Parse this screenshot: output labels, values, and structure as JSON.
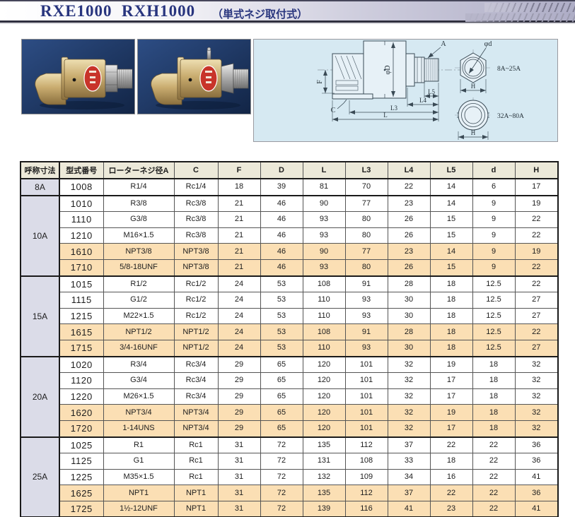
{
  "header": {
    "models": "RXE1000  RXH1000",
    "subtitle": "（単式ネジ取付式）"
  },
  "colors": {
    "title_navy": "#28357e",
    "band_gray": "#aeadc6",
    "diagram_bg": "#d6e9f2",
    "header_cream": "#ece9d9",
    "size_lavender": "#dbdce8",
    "npt_peach": "#fbdfb4",
    "photo_navy": "#1d3560",
    "brass": "#c8ab6e",
    "label_red": "#c8342a"
  },
  "photos": {
    "left_alt": "rotary-joint-photo-left",
    "right_alt": "rotary-joint-photo-right"
  },
  "diagram": {
    "labels": {
      "a": "A",
      "phi_d": "φd",
      "f": "F",
      "phi_D": "φD",
      "c": "C",
      "l5": "L5",
      "l4": "L4",
      "l3": "L3",
      "l": "L",
      "h_hex": "H",
      "h_round": "H",
      "range_hex": "8A~25A",
      "range_round": "32A~80A"
    }
  },
  "table": {
    "columns": [
      "呼称寸法",
      "型式番号",
      "ローターネジ径A",
      "C",
      "F",
      "D",
      "L",
      "L3",
      "L4",
      "L5",
      "d",
      "H"
    ],
    "groups": [
      {
        "size": "8A",
        "rows": [
          {
            "highlight": false,
            "cells": [
              "1008",
              "R1/4",
              "Rc1/4",
              "18",
              "39",
              "81",
              "70",
              "22",
              "14",
              "6",
              "17"
            ]
          }
        ]
      },
      {
        "size": "10A",
        "rows": [
          {
            "highlight": false,
            "cells": [
              "1010",
              "R3/8",
              "Rc3/8",
              "21",
              "46",
              "90",
              "77",
              "23",
              "14",
              "9",
              "19"
            ]
          },
          {
            "highlight": false,
            "cells": [
              "1110",
              "G3/8",
              "Rc3/8",
              "21",
              "46",
              "93",
              "80",
              "26",
              "15",
              "9",
              "22"
            ]
          },
          {
            "highlight": false,
            "cells": [
              "1210",
              "M16×1.5",
              "Rc3/8",
              "21",
              "46",
              "93",
              "80",
              "26",
              "15",
              "9",
              "22"
            ]
          },
          {
            "highlight": true,
            "cells": [
              "1610",
              "NPT3/8",
              "NPT3/8",
              "21",
              "46",
              "90",
              "77",
              "23",
              "14",
              "9",
              "19"
            ]
          },
          {
            "highlight": true,
            "cells": [
              "1710",
              "5/8-18UNF",
              "NPT3/8",
              "21",
              "46",
              "93",
              "80",
              "26",
              "15",
              "9",
              "22"
            ]
          }
        ]
      },
      {
        "size": "15A",
        "rows": [
          {
            "highlight": false,
            "cells": [
              "1015",
              "R1/2",
              "Rc1/2",
              "24",
              "53",
              "108",
              "91",
              "28",
              "18",
              "12.5",
              "22"
            ]
          },
          {
            "highlight": false,
            "cells": [
              "1115",
              "G1/2",
              "Rc1/2",
              "24",
              "53",
              "110",
              "93",
              "30",
              "18",
              "12.5",
              "27"
            ]
          },
          {
            "highlight": false,
            "cells": [
              "1215",
              "M22×1.5",
              "Rc1/2",
              "24",
              "53",
              "110",
              "93",
              "30",
              "18",
              "12.5",
              "27"
            ]
          },
          {
            "highlight": true,
            "cells": [
              "1615",
              "NPT1/2",
              "NPT1/2",
              "24",
              "53",
              "108",
              "91",
              "28",
              "18",
              "12.5",
              "22"
            ]
          },
          {
            "highlight": true,
            "cells": [
              "1715",
              "3/4-16UNF",
              "NPT1/2",
              "24",
              "53",
              "110",
              "93",
              "30",
              "18",
              "12.5",
              "27"
            ]
          }
        ]
      },
      {
        "size": "20A",
        "rows": [
          {
            "highlight": false,
            "cells": [
              "1020",
              "R3/4",
              "Rc3/4",
              "29",
              "65",
              "120",
              "101",
              "32",
              "19",
              "18",
              "32"
            ]
          },
          {
            "highlight": false,
            "cells": [
              "1120",
              "G3/4",
              "Rc3/4",
              "29",
              "65",
              "120",
              "101",
              "32",
              "17",
              "18",
              "32"
            ]
          },
          {
            "highlight": false,
            "cells": [
              "1220",
              "M26×1.5",
              "Rc3/4",
              "29",
              "65",
              "120",
              "101",
              "32",
              "17",
              "18",
              "32"
            ]
          },
          {
            "highlight": true,
            "cells": [
              "1620",
              "NPT3/4",
              "NPT3/4",
              "29",
              "65",
              "120",
              "101",
              "32",
              "19",
              "18",
              "32"
            ]
          },
          {
            "highlight": true,
            "cells": [
              "1720",
              "1-14UNS",
              "NPT3/4",
              "29",
              "65",
              "120",
              "101",
              "32",
              "17",
              "18",
              "32"
            ]
          }
        ]
      },
      {
        "size": "25A",
        "rows": [
          {
            "highlight": false,
            "cells": [
              "1025",
              "R1",
              "Rc1",
              "31",
              "72",
              "135",
              "112",
              "37",
              "22",
              "22",
              "36"
            ]
          },
          {
            "highlight": false,
            "cells": [
              "1125",
              "G1",
              "Rc1",
              "31",
              "72",
              "131",
              "108",
              "33",
              "18",
              "22",
              "36"
            ]
          },
          {
            "highlight": false,
            "cells": [
              "1225",
              "M35×1.5",
              "Rc1",
              "31",
              "72",
              "132",
              "109",
              "34",
              "16",
              "22",
              "41"
            ]
          },
          {
            "highlight": true,
            "cells": [
              "1625",
              "NPT1",
              "NPT1",
              "31",
              "72",
              "135",
              "112",
              "37",
              "22",
              "22",
              "36"
            ]
          },
          {
            "highlight": true,
            "cells": [
              "1725",
              "1½-12UNF",
              "NPT1",
              "31",
              "72",
              "139",
              "116",
              "41",
              "23",
              "22",
              "41"
            ]
          }
        ]
      },
      {
        "size": "",
        "rows": [
          {
            "highlight": false,
            "cells": [
              "",
              "",
              "",
              "",
              "",
              "",
              "",
              "",
              "",
              "",
              ""
            ]
          }
        ]
      }
    ]
  }
}
